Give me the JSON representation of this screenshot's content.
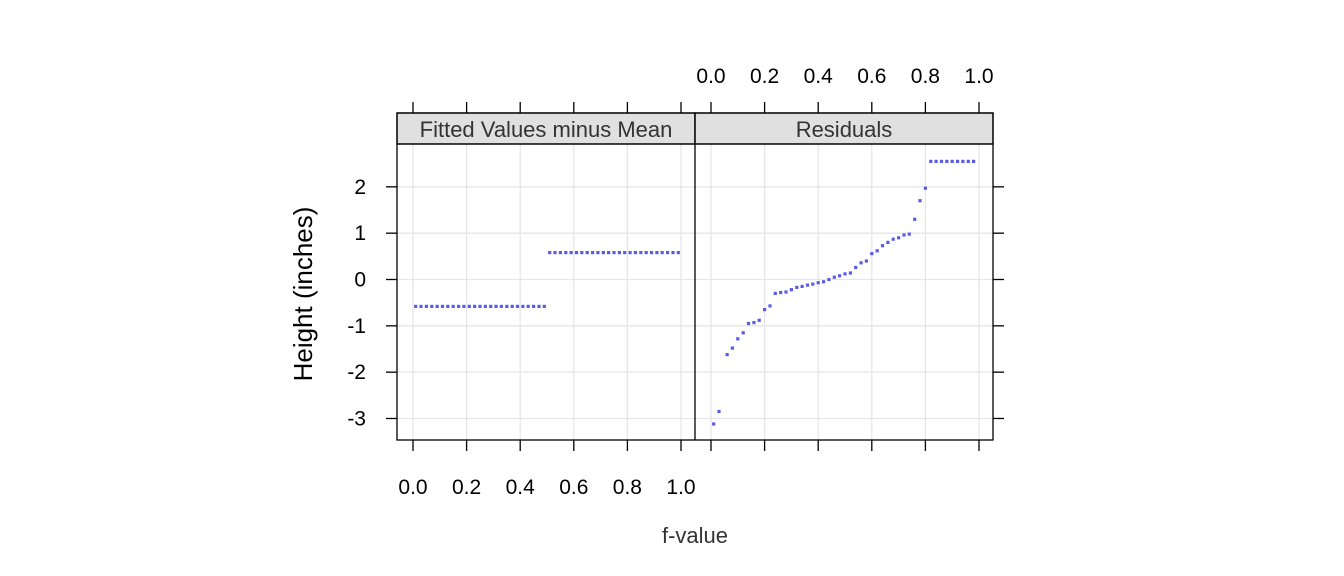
{
  "chart_data": {
    "type": "scatter",
    "xlabel": "f-value",
    "ylabel": "Height (inches)",
    "xlim": [
      0,
      1
    ],
    "ylim": [
      -3.5,
      2.9
    ],
    "x_ticks": [
      0.0,
      0.2,
      0.4,
      0.6,
      0.8,
      1.0
    ],
    "x_tick_labels": [
      "0.0",
      "0.2",
      "0.4",
      "0.6",
      "0.8",
      "1.0"
    ],
    "y_ticks": [
      -3,
      -2,
      -1,
      0,
      1,
      2
    ],
    "y_tick_labels": [
      "-3",
      "-2",
      "-1",
      "0",
      "1",
      "2"
    ],
    "grid": true,
    "point_color": "#5b5be6",
    "panels": [
      {
        "name": "Fitted Values minus Mean",
        "x": [
          0.01,
          0.03,
          0.05,
          0.07,
          0.09,
          0.11,
          0.13,
          0.15,
          0.17,
          0.19,
          0.21,
          0.23,
          0.25,
          0.27,
          0.29,
          0.31,
          0.33,
          0.35,
          0.37,
          0.39,
          0.41,
          0.43,
          0.45,
          0.47,
          0.49,
          0.51,
          0.53,
          0.55,
          0.57,
          0.59,
          0.61,
          0.63,
          0.65,
          0.67,
          0.69,
          0.71,
          0.73,
          0.75,
          0.77,
          0.79,
          0.81,
          0.83,
          0.85,
          0.87,
          0.89,
          0.91,
          0.93,
          0.95,
          0.97,
          0.99
        ],
        "y": [
          -0.58,
          -0.58,
          -0.58,
          -0.58,
          -0.58,
          -0.58,
          -0.58,
          -0.58,
          -0.58,
          -0.58,
          -0.58,
          -0.58,
          -0.58,
          -0.58,
          -0.58,
          -0.58,
          -0.58,
          -0.58,
          -0.58,
          -0.58,
          -0.58,
          -0.58,
          -0.58,
          -0.58,
          -0.58,
          0.58,
          0.58,
          0.58,
          0.58,
          0.58,
          0.58,
          0.58,
          0.58,
          0.58,
          0.58,
          0.58,
          0.58,
          0.58,
          0.58,
          0.58,
          0.58,
          0.58,
          0.58,
          0.58,
          0.58,
          0.58,
          0.58,
          0.58,
          0.58,
          0.58
        ]
      },
      {
        "name": "Residuals",
        "x": [
          0.01,
          0.03,
          0.06,
          0.08,
          0.1,
          0.12,
          0.14,
          0.16,
          0.18,
          0.2,
          0.22,
          0.24,
          0.26,
          0.28,
          0.3,
          0.32,
          0.34,
          0.36,
          0.38,
          0.4,
          0.42,
          0.44,
          0.46,
          0.48,
          0.5,
          0.52,
          0.54,
          0.56,
          0.58,
          0.6,
          0.62,
          0.64,
          0.66,
          0.68,
          0.7,
          0.72,
          0.74,
          0.76,
          0.78,
          0.8,
          0.82,
          0.84,
          0.86,
          0.88,
          0.9,
          0.92,
          0.94,
          0.96,
          0.98
        ],
        "y": [
          -3.12,
          -2.85,
          -1.62,
          -1.48,
          -1.28,
          -1.15,
          -0.95,
          -0.93,
          -0.88,
          -0.65,
          -0.57,
          -0.3,
          -0.28,
          -0.27,
          -0.22,
          -0.17,
          -0.15,
          -0.12,
          -0.1,
          -0.07,
          -0.05,
          0.0,
          0.05,
          0.08,
          0.12,
          0.14,
          0.26,
          0.36,
          0.4,
          0.56,
          0.62,
          0.73,
          0.8,
          0.87,
          0.9,
          0.96,
          0.98,
          1.3,
          1.7,
          1.97,
          2.55,
          2.55,
          2.55,
          2.55,
          2.55,
          2.55,
          2.55,
          2.55,
          2.55
        ]
      }
    ]
  }
}
